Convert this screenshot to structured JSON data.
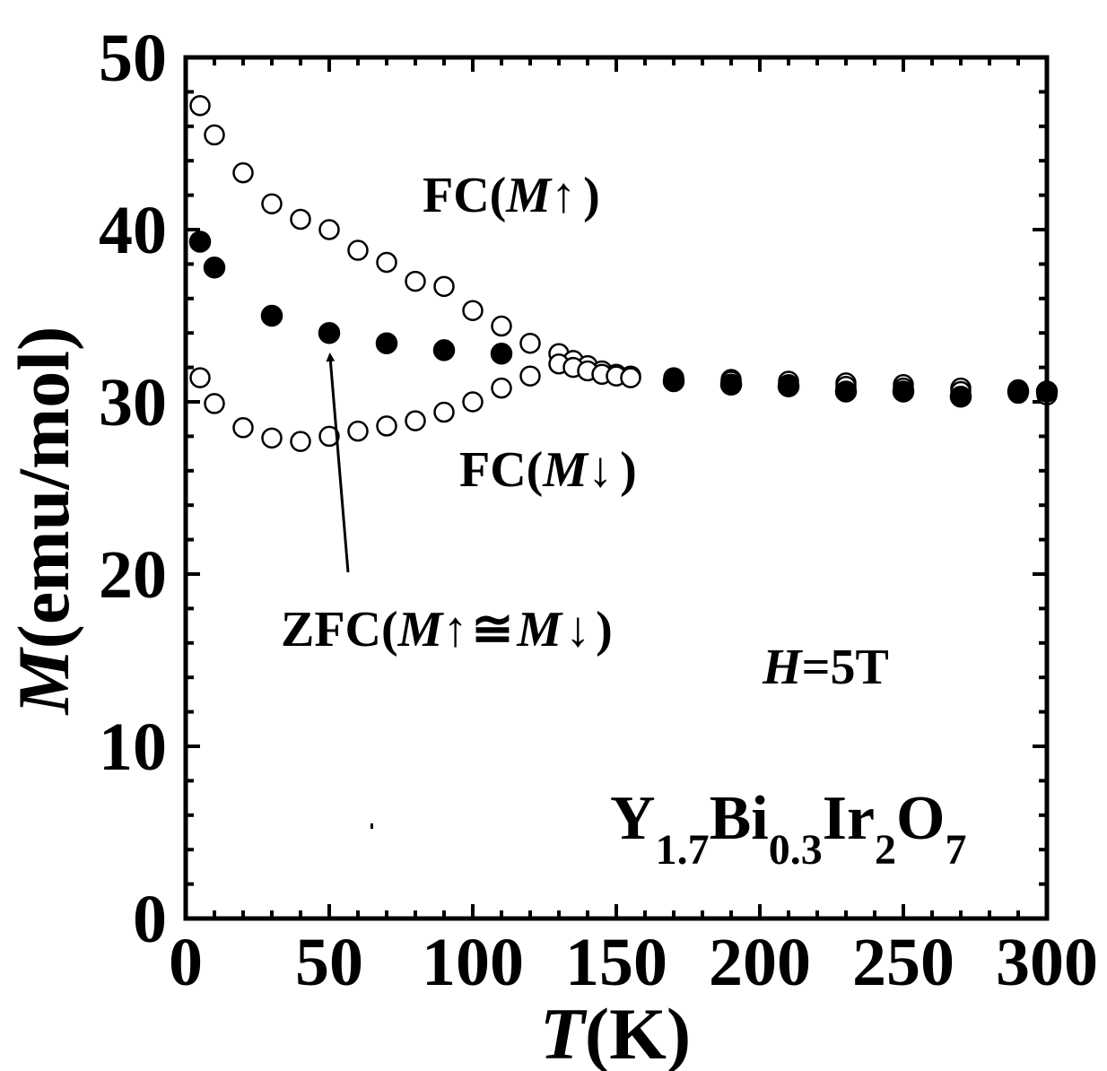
{
  "chart_data": {
    "type": "scatter",
    "xlabel": {
      "italic": "T",
      "rest": "(K)"
    },
    "ylabel": {
      "italic": "M",
      "rest": "(emu/mol)"
    },
    "xlim": [
      0,
      300
    ],
    "ylim": [
      0,
      50
    ],
    "xticks": [
      "0",
      "50",
      "100",
      "150",
      "200",
      "250",
      "300"
    ],
    "yticks": [
      "0",
      "10",
      "20",
      "30",
      "40",
      "50"
    ],
    "grid": false,
    "series": [
      {
        "marker": "open-circle",
        "points": [
          [
            5,
            47.2
          ],
          [
            10,
            45.5
          ],
          [
            20,
            43.3
          ],
          [
            30,
            41.5
          ],
          [
            40,
            40.6
          ],
          [
            50,
            40.0
          ],
          [
            60,
            38.8
          ],
          [
            70,
            38.1
          ],
          [
            80,
            37.0
          ],
          [
            90,
            36.7
          ],
          [
            100,
            35.3
          ],
          [
            110,
            34.4
          ],
          [
            120,
            33.4
          ],
          [
            130,
            32.8
          ],
          [
            135,
            32.4
          ],
          [
            140,
            32.1
          ],
          [
            145,
            31.8
          ],
          [
            150,
            31.6
          ],
          [
            155,
            31.5
          ],
          [
            170,
            31.4
          ],
          [
            190,
            31.3
          ],
          [
            210,
            31.2
          ],
          [
            230,
            31.1
          ],
          [
            250,
            31.0
          ],
          [
            270,
            30.8
          ],
          [
            290,
            30.7
          ],
          [
            300,
            30.6
          ]
        ]
      },
      {
        "marker": "open-circle",
        "points": [
          [
            5,
            31.4
          ],
          [
            10,
            29.9
          ],
          [
            20,
            28.5
          ],
          [
            30,
            27.9
          ],
          [
            40,
            27.7
          ],
          [
            50,
            28.0
          ],
          [
            60,
            28.3
          ],
          [
            70,
            28.6
          ],
          [
            80,
            28.9
          ],
          [
            90,
            29.4
          ],
          [
            100,
            30.0
          ],
          [
            110,
            30.8
          ],
          [
            120,
            31.5
          ],
          [
            130,
            32.2
          ],
          [
            135,
            32.0
          ],
          [
            140,
            31.8
          ],
          [
            145,
            31.6
          ],
          [
            150,
            31.5
          ],
          [
            155,
            31.4
          ],
          [
            170,
            31.3
          ],
          [
            190,
            31.2
          ],
          [
            210,
            31.0
          ],
          [
            230,
            30.9
          ],
          [
            250,
            30.8
          ],
          [
            270,
            30.6
          ],
          [
            290,
            30.5
          ],
          [
            300,
            30.4
          ]
        ]
      },
      {
        "marker": "filled-circle",
        "points": [
          [
            5,
            39.3
          ],
          [
            10,
            37.8
          ],
          [
            30,
            35.0
          ],
          [
            50,
            34.0
          ],
          [
            70,
            33.4
          ],
          [
            90,
            33.0
          ],
          [
            110,
            32.8
          ],
          [
            170,
            31.2
          ],
          [
            190,
            31.0
          ],
          [
            210,
            30.9
          ],
          [
            230,
            30.6
          ],
          [
            250,
            30.6
          ],
          [
            270,
            30.3
          ],
          [
            290,
            30.6
          ],
          [
            300,
            30.6
          ]
        ]
      }
    ],
    "annotations": {
      "fc_up": {
        "prefix": "FC(",
        "var": "M",
        "arrow": "↑",
        "suffix": ")"
      },
      "fc_down": {
        "prefix": "FC(",
        "var": "M",
        "arrow": "↓",
        "suffix": ")"
      },
      "zfc": {
        "prefix": "ZFC(",
        "var1": "M",
        "arrow1": "↑",
        "approx": "≅",
        "var2": "M",
        "arrow2": "↓",
        "suffix": ")"
      },
      "field": {
        "var": "H",
        "rest": "=5T"
      },
      "formula": {
        "y": "Y",
        "y_sub": "1.7",
        "bi": "Bi",
        "bi_sub": "0.3",
        "ir": "Ir",
        "ir_sub": "2",
        "o": "O",
        "o_sub": "7"
      }
    }
  }
}
